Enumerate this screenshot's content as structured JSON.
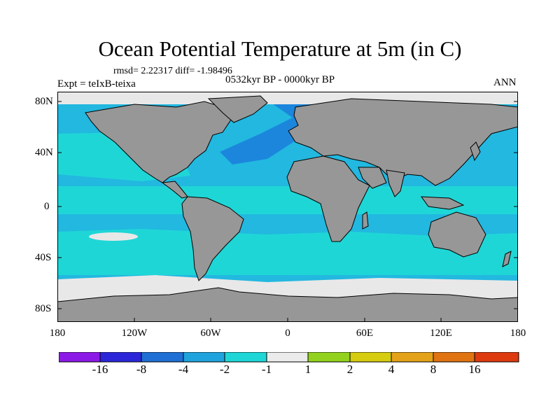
{
  "title": "Ocean Potential Temperature at 5m (in C)",
  "stats": "rmsd= 2.22317  diff= -1.98496",
  "period": "0532kyr BP - 0000kyr BP",
  "experiment": "Expt = teIxB-teixa",
  "season": "ANN",
  "axes": {
    "y_ticks": [
      "80N",
      "40N",
      "0",
      "40S",
      "80S"
    ],
    "x_ticks": [
      "180",
      "120W",
      "60W",
      "0",
      "60E",
      "120E",
      "180"
    ]
  },
  "colorbar": {
    "colors": [
      "#8c1ae6",
      "#2b27d9",
      "#1f6fd4",
      "#1fa3dd",
      "#1fd6d6",
      "#ebebeb",
      "#92d11d",
      "#d6cc10",
      "#e3a21a",
      "#e07312",
      "#dd3a10"
    ],
    "labels": [
      "-16",
      "-8",
      "-4",
      "-2",
      "-1",
      "1",
      "2",
      "4",
      "8",
      "16"
    ]
  },
  "colors": {
    "land": "#979797",
    "ice": "#e8e8e8",
    "ocean_base": "#22b8e0",
    "ocean_cyan": "#1fd6d6",
    "ocean_dark": "#1c86dd"
  }
}
